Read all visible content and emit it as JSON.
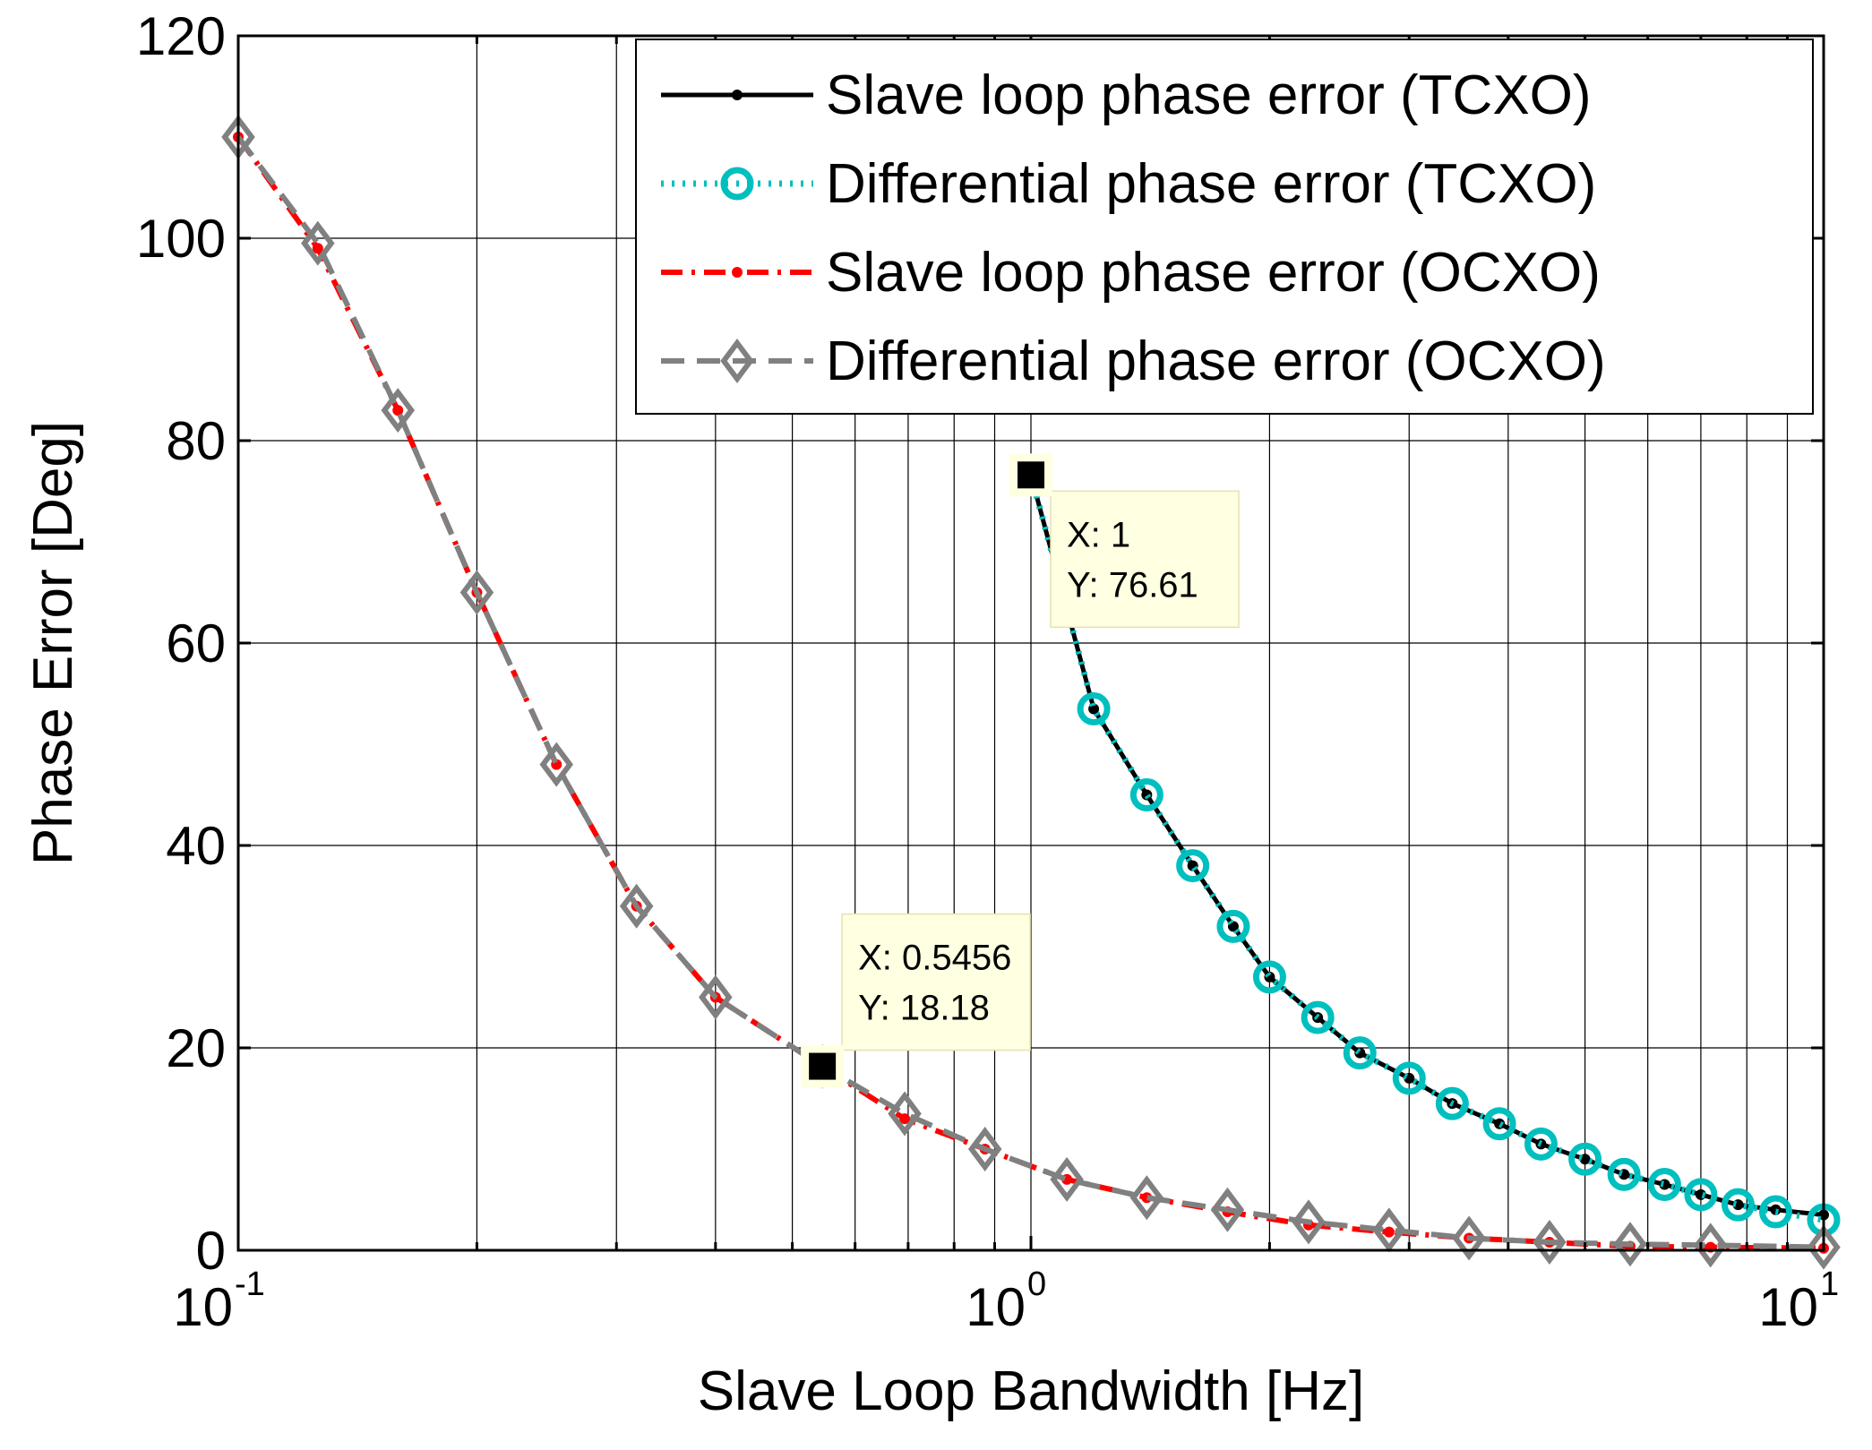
{
  "chart_data": {
    "type": "line",
    "title": "",
    "xlabel": "Slave Loop Bandwidth [Hz]",
    "ylabel": "Phase Error [Deg]",
    "xscale": "log",
    "xlim": [
      0.1,
      10
    ],
    "ylim": [
      0,
      120
    ],
    "grid": true,
    "x_ticks": [
      {
        "base": "10",
        "exp": "-1",
        "value": 0.1
      },
      {
        "base": "10",
        "exp": "0",
        "value": 1
      },
      {
        "base": "10",
        "exp": "1",
        "value": 10
      }
    ],
    "y_ticks": [
      "0",
      "20",
      "40",
      "60",
      "80",
      "100",
      "120"
    ],
    "legend_position": "top-right",
    "series": [
      {
        "name": "Slave loop phase error (TCXO)",
        "color": "#000000",
        "style": "solid",
        "marker": "dot",
        "x": [
          1,
          1.2,
          1.4,
          1.6,
          1.8,
          2,
          2.3,
          2.6,
          3,
          3.4,
          3.9,
          4.4,
          5,
          5.6,
          6.3,
          7,
          7.8,
          8.7,
          10
        ],
        "y": [
          76.61,
          53.5,
          45,
          38,
          32,
          27,
          23,
          19.5,
          17,
          14.5,
          12.5,
          10.5,
          9,
          7.5,
          6.5,
          5.5,
          4.5,
          4,
          3.5
        ]
      },
      {
        "name": "Differential phase error (TCXO)",
        "color": "#00bfbf",
        "style": "dotted",
        "marker": "circle",
        "x": [
          1,
          1.2,
          1.4,
          1.6,
          1.8,
          2,
          2.3,
          2.6,
          3,
          3.4,
          3.9,
          4.4,
          5,
          5.6,
          6.3,
          7,
          7.8,
          8.7,
          10
        ],
        "y": [
          76.61,
          53.5,
          45,
          38,
          32,
          27,
          23,
          19.5,
          17,
          14.5,
          12.5,
          10.5,
          9,
          7.5,
          6.5,
          5.5,
          4.5,
          3.8,
          3
        ]
      },
      {
        "name": "Slave loop phase error (OCXO)",
        "color": "#ff0000",
        "style": "dashdot",
        "marker": "dot",
        "x": [
          0.1,
          0.126,
          0.159,
          0.2,
          0.252,
          0.318,
          0.4,
          0.5456,
          0.693,
          0.875,
          1.11,
          1.4,
          1.77,
          2.24,
          2.83,
          3.57,
          4.51,
          5.7,
          7.2,
          10
        ],
        "y": [
          110,
          99,
          83,
          65,
          48,
          34,
          25,
          18.18,
          13,
          10,
          7,
          5.2,
          3.8,
          2.5,
          1.8,
          1.2,
          0.8,
          0.4,
          0.3,
          0.2
        ]
      },
      {
        "name": "Differential phase error (OCXO)",
        "color": "#808080",
        "style": "dashed",
        "marker": "diamond",
        "x": [
          0.1,
          0.126,
          0.159,
          0.2,
          0.252,
          0.318,
          0.4,
          0.5456,
          0.693,
          0.875,
          1.11,
          1.4,
          1.77,
          2.24,
          2.83,
          3.57,
          4.51,
          5.7,
          7.2,
          10
        ],
        "y": [
          110,
          99.5,
          83,
          65,
          48,
          34,
          25,
          18.18,
          13.5,
          10,
          7,
          5.2,
          4,
          2.8,
          2,
          1.2,
          0.8,
          0.6,
          0.5,
          0.3
        ]
      }
    ],
    "annotations": [
      {
        "x_label": "X: 1",
        "y_label": "Y: 76.61",
        "x": 1,
        "y": 76.61
      },
      {
        "x_label": "X: 0.5456",
        "y_label": "Y: 18.18",
        "x": 0.5456,
        "y": 18.18
      }
    ]
  }
}
